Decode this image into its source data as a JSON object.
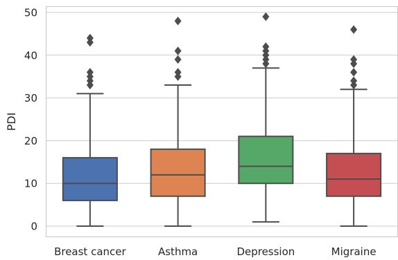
{
  "chart_data": {
    "type": "box",
    "title": "",
    "xlabel": "",
    "ylabel": "PDI",
    "ylim": [
      -2.5,
      51.5
    ],
    "yticks": [
      0,
      10,
      20,
      30,
      40,
      50
    ],
    "grid": true,
    "legend": "none",
    "categories": [
      "Breast cancer",
      "Asthma",
      "Depression",
      "Migraine"
    ],
    "boxes": [
      {
        "category": "Breast cancer",
        "color": "#4c72b0",
        "whisker_low": 0,
        "q1": 6,
        "median": 10,
        "q3": 16,
        "whisker_high": 31,
        "fliers": [
          33,
          34,
          35,
          36,
          43,
          44
        ]
      },
      {
        "category": "Asthma",
        "color": "#dd8452",
        "whisker_low": 0,
        "q1": 7,
        "median": 12,
        "q3": 18,
        "whisker_high": 33,
        "fliers": [
          35,
          36,
          39,
          41,
          48
        ]
      },
      {
        "category": "Depression",
        "color": "#55a868",
        "whisker_low": 1,
        "q1": 10,
        "median": 14,
        "q3": 21,
        "whisker_high": 37,
        "fliers": [
          38,
          39,
          40,
          41,
          42,
          49
        ]
      },
      {
        "category": "Migraine",
        "color": "#c44e52",
        "whisker_low": 0,
        "q1": 7,
        "median": 11,
        "q3": 17,
        "whisker_high": 32,
        "fliers": [
          33,
          34,
          36,
          38,
          39,
          46
        ]
      }
    ]
  }
}
